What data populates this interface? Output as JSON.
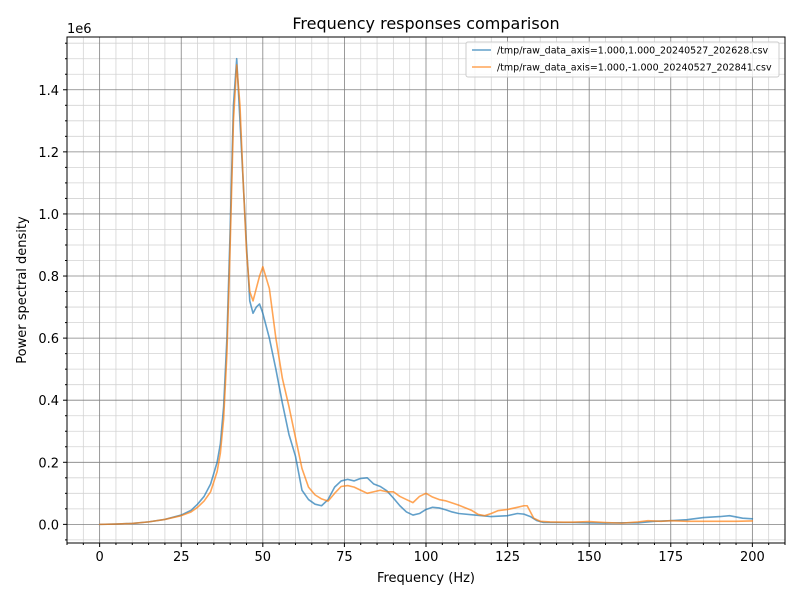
{
  "chart_data": {
    "type": "line",
    "title": "Frequency responses comparison",
    "xlabel": "Frequency (Hz)",
    "ylabel": "Power spectral density",
    "y_offset_label": "1e6",
    "xlim": [
      -10,
      210
    ],
    "ylim": [
      -60000,
      1570000
    ],
    "x_ticks": [
      0,
      25,
      50,
      75,
      100,
      125,
      150,
      175,
      200
    ],
    "x_tick_labels": [
      "0",
      "25",
      "50",
      "75",
      "100",
      "125",
      "150",
      "175",
      "200"
    ],
    "y_ticks": [
      0,
      200000,
      400000,
      600000,
      800000,
      1000000,
      1200000,
      1400000
    ],
    "y_tick_labels": [
      "0.0",
      "0.2",
      "0.4",
      "0.6",
      "0.8",
      "1.0",
      "1.2",
      "1.4"
    ],
    "x_minor_step": 5,
    "y_minor_step": 50000,
    "grid": true,
    "legend_position": "top-right",
    "series": [
      {
        "name": "/tmp/raw_data_axis=1.000,1.000_20240527_202628.csv",
        "color": "#1f77b4",
        "points": [
          [
            0,
            0
          ],
          [
            5,
            1000
          ],
          [
            10,
            3000
          ],
          [
            15,
            8000
          ],
          [
            20,
            16000
          ],
          [
            25,
            30000
          ],
          [
            28,
            45000
          ],
          [
            30,
            65000
          ],
          [
            32,
            90000
          ],
          [
            34,
            130000
          ],
          [
            36,
            200000
          ],
          [
            37,
            260000
          ],
          [
            38,
            380000
          ],
          [
            39,
            600000
          ],
          [
            40,
            950000
          ],
          [
            41,
            1350000
          ],
          [
            42,
            1500000
          ],
          [
            43,
            1300000
          ],
          [
            44,
            1100000
          ],
          [
            45,
            900000
          ],
          [
            46,
            720000
          ],
          [
            47,
            680000
          ],
          [
            48,
            700000
          ],
          [
            49,
            710000
          ],
          [
            50,
            680000
          ],
          [
            52,
            600000
          ],
          [
            54,
            500000
          ],
          [
            56,
            390000
          ],
          [
            58,
            290000
          ],
          [
            60,
            220000
          ],
          [
            62,
            110000
          ],
          [
            64,
            80000
          ],
          [
            66,
            65000
          ],
          [
            68,
            60000
          ],
          [
            70,
            80000
          ],
          [
            72,
            120000
          ],
          [
            74,
            140000
          ],
          [
            76,
            145000
          ],
          [
            78,
            140000
          ],
          [
            80,
            148000
          ],
          [
            82,
            150000
          ],
          [
            84,
            130000
          ],
          [
            86,
            122000
          ],
          [
            88,
            108000
          ],
          [
            90,
            85000
          ],
          [
            92,
            60000
          ],
          [
            94,
            40000
          ],
          [
            96,
            30000
          ],
          [
            98,
            35000
          ],
          [
            100,
            48000
          ],
          [
            102,
            55000
          ],
          [
            104,
            53000
          ],
          [
            106,
            47000
          ],
          [
            108,
            40000
          ],
          [
            110,
            35000
          ],
          [
            115,
            30000
          ],
          [
            120,
            25000
          ],
          [
            125,
            28000
          ],
          [
            128,
            35000
          ],
          [
            130,
            33000
          ],
          [
            132,
            25000
          ],
          [
            134,
            12000
          ],
          [
            136,
            6000
          ],
          [
            140,
            6000
          ],
          [
            145,
            6000
          ],
          [
            150,
            5000
          ],
          [
            155,
            4000
          ],
          [
            160,
            5000
          ],
          [
            165,
            5000
          ],
          [
            170,
            10000
          ],
          [
            175,
            12000
          ],
          [
            180,
            15000
          ],
          [
            185,
            22000
          ],
          [
            190,
            25000
          ],
          [
            193,
            28000
          ],
          [
            197,
            20000
          ],
          [
            200,
            18000
          ]
        ]
      },
      {
        "name": "/tmp/raw_data_axis=1.000,-1.000_20240527_202841.csv",
        "color": "#ff7f0e",
        "points": [
          [
            0,
            0
          ],
          [
            5,
            1000
          ],
          [
            10,
            3000
          ],
          [
            15,
            8000
          ],
          [
            20,
            16000
          ],
          [
            25,
            28000
          ],
          [
            28,
            40000
          ],
          [
            30,
            55000
          ],
          [
            32,
            75000
          ],
          [
            34,
            105000
          ],
          [
            36,
            170000
          ],
          [
            37,
            230000
          ],
          [
            38,
            340000
          ],
          [
            39,
            550000
          ],
          [
            40,
            900000
          ],
          [
            41,
            1300000
          ],
          [
            42,
            1480000
          ],
          [
            43,
            1350000
          ],
          [
            44,
            1100000
          ],
          [
            45,
            880000
          ],
          [
            46,
            750000
          ],
          [
            47,
            720000
          ],
          [
            48,
            760000
          ],
          [
            49,
            800000
          ],
          [
            50,
            830000
          ],
          [
            52,
            760000
          ],
          [
            54,
            600000
          ],
          [
            56,
            470000
          ],
          [
            58,
            380000
          ],
          [
            60,
            280000
          ],
          [
            62,
            180000
          ],
          [
            64,
            120000
          ],
          [
            66,
            95000
          ],
          [
            68,
            82000
          ],
          [
            70,
            75000
          ],
          [
            72,
            100000
          ],
          [
            74,
            122000
          ],
          [
            76,
            125000
          ],
          [
            78,
            120000
          ],
          [
            80,
            110000
          ],
          [
            82,
            100000
          ],
          [
            84,
            105000
          ],
          [
            86,
            110000
          ],
          [
            88,
            105000
          ],
          [
            90,
            105000
          ],
          [
            92,
            90000
          ],
          [
            94,
            80000
          ],
          [
            96,
            70000
          ],
          [
            98,
            90000
          ],
          [
            100,
            100000
          ],
          [
            102,
            88000
          ],
          [
            104,
            80000
          ],
          [
            106,
            76000
          ],
          [
            110,
            62000
          ],
          [
            114,
            45000
          ],
          [
            116,
            32000
          ],
          [
            118,
            28000
          ],
          [
            120,
            35000
          ],
          [
            122,
            44000
          ],
          [
            125,
            48000
          ],
          [
            128,
            55000
          ],
          [
            130,
            60000
          ],
          [
            131,
            60000
          ],
          [
            133,
            20000
          ],
          [
            135,
            10000
          ],
          [
            138,
            8000
          ],
          [
            142,
            7000
          ],
          [
            145,
            7000
          ],
          [
            150,
            9000
          ],
          [
            155,
            6000
          ],
          [
            160,
            4000
          ],
          [
            165,
            8000
          ],
          [
            168,
            12000
          ],
          [
            172,
            10000
          ],
          [
            175,
            12000
          ],
          [
            180,
            10000
          ],
          [
            185,
            10000
          ],
          [
            190,
            10000
          ],
          [
            195,
            10000
          ],
          [
            200,
            11000
          ]
        ]
      }
    ]
  }
}
